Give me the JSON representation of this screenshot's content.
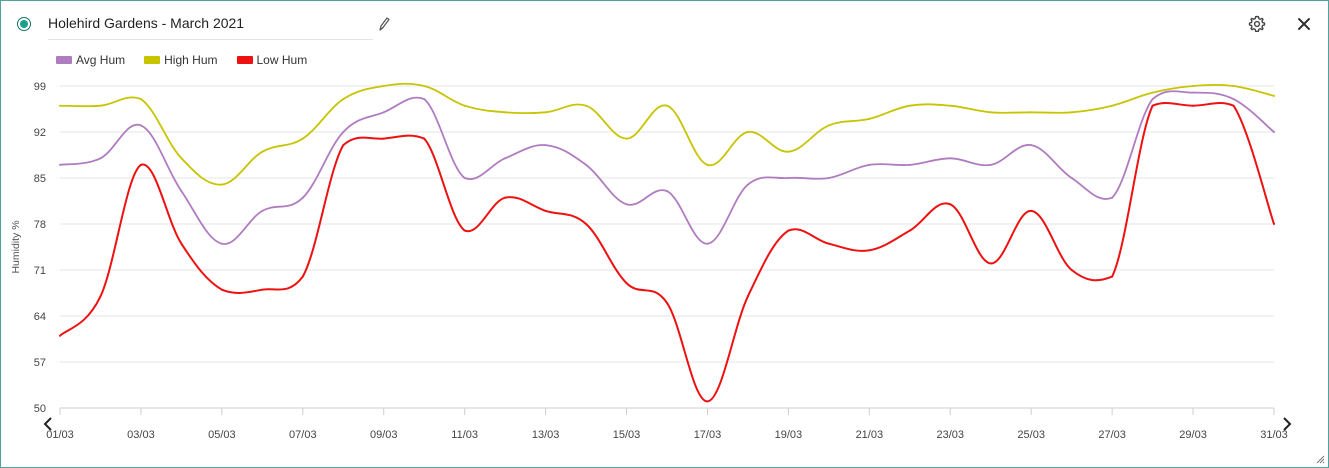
{
  "widget": {
    "title": "Holehird Gardens - March 2021",
    "icons": {
      "status": "radio-selected-icon",
      "edit": "pencil-icon",
      "settings": "gear-icon",
      "close": "close-icon",
      "prev": "chevron-left-icon",
      "next": "chevron-right-icon",
      "resize": "resize-grip-icon"
    },
    "colors": {
      "border": "#4fa39a",
      "radio": "#1aa38a"
    }
  },
  "chart_data": {
    "type": "line",
    "title": "",
    "xlabel": "",
    "ylabel": "Humidity %",
    "ylim": [
      50,
      99
    ],
    "yticks": [
      50,
      57,
      64,
      71,
      78,
      85,
      92,
      99
    ],
    "x_tick_labels": [
      "01/03",
      "03/03",
      "05/03",
      "07/03",
      "09/03",
      "11/03",
      "13/03",
      "15/03",
      "17/03",
      "19/03",
      "21/03",
      "23/03",
      "25/03",
      "27/03",
      "29/03",
      "31/03"
    ],
    "x": [
      "01/03",
      "02/03",
      "03/03",
      "04/03",
      "05/03",
      "06/03",
      "07/03",
      "08/03",
      "09/03",
      "10/03",
      "11/03",
      "12/03",
      "13/03",
      "14/03",
      "15/03",
      "16/03",
      "17/03",
      "18/03",
      "19/03",
      "20/03",
      "21/03",
      "22/03",
      "23/03",
      "24/03",
      "25/03",
      "26/03",
      "27/03",
      "28/03",
      "29/03",
      "30/03",
      "31/03"
    ],
    "grid": true,
    "legend_position": "top-left",
    "series": [
      {
        "name": "Avg Hum",
        "color": "#b07cc0",
        "values": [
          87,
          88,
          93,
          83,
          75,
          80,
          82,
          92,
          95,
          97,
          85,
          88,
          90,
          87,
          81,
          83,
          75,
          84,
          85,
          85,
          87,
          87,
          88,
          87,
          90,
          85,
          82,
          97,
          98,
          97,
          92
        ]
      },
      {
        "name": "High Hum",
        "color": "#c7c400",
        "values": [
          96,
          96,
          97,
          88,
          84,
          89,
          91,
          97,
          99,
          99,
          96,
          95,
          95,
          96,
          91,
          96,
          87,
          92,
          89,
          93,
          94,
          96,
          96,
          95,
          95,
          95,
          96,
          98,
          99,
          99,
          97.5
        ]
      },
      {
        "name": "Low Hum",
        "color": "#ee1111",
        "values": [
          61,
          67,
          87,
          75,
          68,
          68,
          70,
          90,
          91,
          91,
          77,
          82,
          80,
          78,
          69,
          66,
          51,
          67,
          77,
          75,
          74,
          77,
          81,
          72,
          80,
          71,
          70,
          96,
          96,
          96,
          78
        ]
      }
    ]
  }
}
